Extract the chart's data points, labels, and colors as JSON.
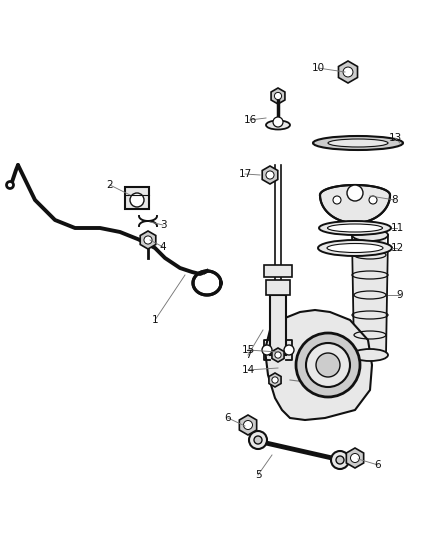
{
  "background_color": "#ffffff",
  "figsize": [
    4.38,
    5.33
  ],
  "dpi": 100,
  "line_color": "#333333",
  "parts_color": "#111111",
  "fill_light": "#e8e8e8",
  "fill_mid": "#cccccc",
  "label_fontsize": 7.5
}
